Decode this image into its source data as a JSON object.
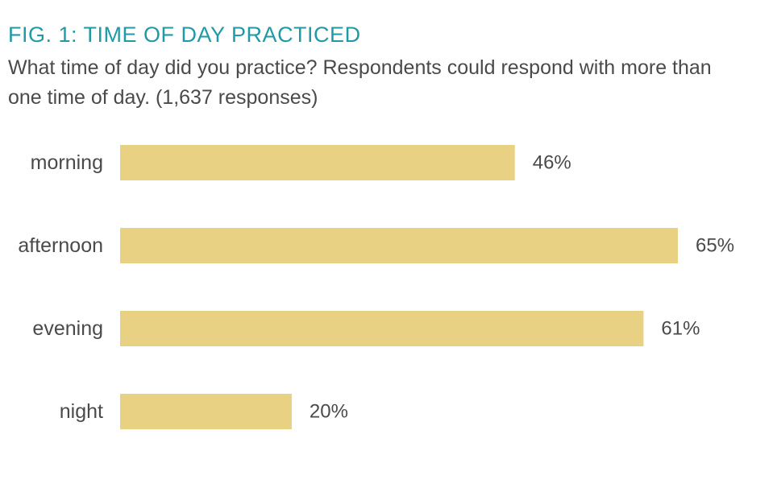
{
  "figure": {
    "title": "FIG. 1: TIME OF DAY PRACTICED",
    "subtitle": "What time of day did you practice? Respondents could respond with more than one time of day. (1,637 responses)"
  },
  "colors": {
    "title": "#1f9aa6",
    "text": "#4a4a4a",
    "bar": "#e8d183"
  },
  "chart_data": {
    "type": "bar",
    "orientation": "horizontal",
    "categories": [
      "morning",
      "afternoon",
      "evening",
      "night"
    ],
    "values": [
      46,
      65,
      61,
      20
    ],
    "value_labels": [
      "46%",
      "65%",
      "61%",
      "20%"
    ],
    "unit": "%",
    "xlim": [
      0,
      65
    ],
    "grid": false,
    "legend": "none"
  }
}
